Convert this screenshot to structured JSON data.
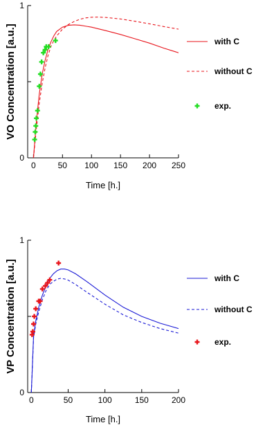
{
  "chart_data": [
    {
      "type": "line",
      "xlabel": "Time [h.]",
      "ylabel": "VO Concentration [a.u.]",
      "xlim": [
        -10,
        250
      ],
      "ylim": [
        0,
        1
      ],
      "xticks": [
        "0",
        "50",
        "100",
        "150",
        "200",
        "250"
      ],
      "yticks": [
        "0",
        "1"
      ],
      "grid": false,
      "legend_position": "right",
      "series": [
        {
          "name": "with C",
          "style": "solid",
          "color": "#e8141b",
          "x": [
            0,
            5,
            10,
            15,
            20,
            25,
            30,
            35,
            40,
            50,
            60,
            70,
            80,
            100,
            125,
            150,
            175,
            200,
            225,
            250
          ],
          "y": [
            0.0,
            0.24,
            0.42,
            0.55,
            0.64,
            0.71,
            0.76,
            0.8,
            0.83,
            0.858,
            0.87,
            0.873,
            0.871,
            0.858,
            0.835,
            0.81,
            0.782,
            0.753,
            0.72,
            0.69
          ]
        },
        {
          "name": "without C",
          "style": "dashed",
          "color": "#e8141b",
          "x": [
            0,
            5,
            10,
            15,
            20,
            25,
            30,
            35,
            40,
            50,
            60,
            70,
            80,
            90,
            100,
            110,
            125,
            150,
            175,
            200,
            225,
            250
          ],
          "y": [
            0.0,
            0.19,
            0.36,
            0.49,
            0.59,
            0.67,
            0.73,
            0.77,
            0.8,
            0.845,
            0.875,
            0.895,
            0.91,
            0.919,
            0.923,
            0.924,
            0.922,
            0.912,
            0.897,
            0.88,
            0.862,
            0.845
          ]
        },
        {
          "name": "exp.",
          "style": "marker",
          "color": "#22dd22",
          "x": [
            2,
            3,
            4,
            5,
            7,
            10,
            12,
            14,
            17,
            20,
            22,
            26,
            38
          ],
          "y": [
            0.12,
            0.17,
            0.21,
            0.26,
            0.31,
            0.47,
            0.55,
            0.63,
            0.69,
            0.71,
            0.73,
            0.73,
            0.77
          ]
        }
      ]
    },
    {
      "type": "line",
      "xlabel": "Time [h.]",
      "ylabel": "VP Concentration [a.u.]",
      "xlim": [
        -5,
        200
      ],
      "ylim": [
        0,
        1
      ],
      "xticks": [
        "0",
        "50",
        "100",
        "150",
        "200"
      ],
      "yticks": [
        "0",
        "1"
      ],
      "grid": false,
      "legend_position": "right",
      "series": [
        {
          "name": "with C",
          "style": "solid",
          "color": "#1a1ad6",
          "x": [
            0,
            3,
            6,
            10,
            15,
            20,
            25,
            30,
            35,
            40,
            45,
            50,
            60,
            75,
            100,
            125,
            150,
            175,
            200
          ],
          "y": [
            0.0,
            0.37,
            0.47,
            0.56,
            0.64,
            0.7,
            0.75,
            0.78,
            0.8,
            0.811,
            0.811,
            0.805,
            0.78,
            0.73,
            0.64,
            0.56,
            0.5,
            0.455,
            0.42
          ]
        },
        {
          "name": "without C",
          "style": "dashed",
          "color": "#1a1ad6",
          "x": [
            0,
            3,
            6,
            10,
            15,
            20,
            25,
            30,
            35,
            40,
            45,
            50,
            60,
            75,
            100,
            125,
            150,
            175,
            200
          ],
          "y": [
            0.0,
            0.36,
            0.45,
            0.53,
            0.61,
            0.67,
            0.71,
            0.73,
            0.745,
            0.75,
            0.746,
            0.738,
            0.71,
            0.66,
            0.58,
            0.51,
            0.46,
            0.42,
            0.39
          ]
        },
        {
          "name": "exp.",
          "style": "marker",
          "color": "#e8141b",
          "x": [
            1,
            2,
            3,
            4,
            6,
            10,
            12,
            15,
            19,
            22,
            25,
            37
          ],
          "y": [
            0.38,
            0.4,
            0.45,
            0.5,
            0.55,
            0.6,
            0.6,
            0.68,
            0.7,
            0.72,
            0.74,
            0.85
          ]
        }
      ]
    }
  ]
}
